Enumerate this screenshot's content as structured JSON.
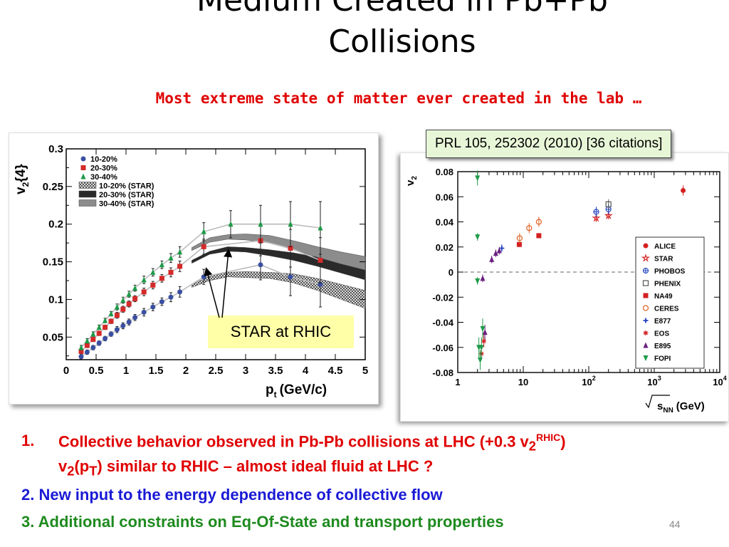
{
  "slide": {
    "title_lines": [
      "Medium Created in Pb+Pb",
      "Collisions"
    ],
    "subtitle": "Most extreme state of matter ever created in the lab …",
    "reference": "PRL 105, 252302 (2010) [36 citations]",
    "callout": "STAR at RHIC",
    "points": {
      "p1_num": "1.",
      "p1_line1": "Collective behavior observed in Pb-Pb collisions at LHC (+0.3 v",
      "p1_sub": "2",
      "p1_sup": "RHIC",
      "p1_close": ")",
      "p1_line2_a": "v",
      "p1_line2_sub1": "2",
      "p1_line2_b": "(p",
      "p1_line2_sub2": "T",
      "p1_line2_c": ") similar to RHIC – almost ideal fluid at LHC ?",
      "p2": "2. New input to the energy dependence of collective flow",
      "p3": "3. Additional constraints on Eq-Of-State and transport properties"
    },
    "page_number": "44",
    "colors": {
      "red": "#e00000",
      "blue": "#1a1ad6",
      "green": "#1e8a1e"
    }
  },
  "chart_data": [
    {
      "type": "scatter",
      "xlabel": "p",
      "xlabel_sub": "t",
      "xlabel_unit": "(GeV/c)",
      "ylabel": "v",
      "ylabel_sub": "2",
      "ylabel_brace": "{4}",
      "xlim": [
        0,
        5
      ],
      "ylim": [
        0.02,
        0.3
      ],
      "xticks": [
        0,
        0.5,
        1,
        1.5,
        2,
        2.5,
        3,
        3.5,
        4,
        4.5,
        5
      ],
      "xtick_labels": [
        "0",
        "0.5",
        "1",
        "1.5",
        "2",
        "2.5",
        "3",
        "3.5",
        "4",
        "4.5",
        "5"
      ],
      "yticks": [
        0.05,
        0.1,
        0.15,
        0.2,
        0.25,
        0.3
      ],
      "ytick_labels": [
        "0.05",
        "0.1",
        "0.15",
        "0.2",
        "0.25",
        "0.3"
      ],
      "legend_position": "top-left",
      "series": [
        {
          "name": "10-20%",
          "marker": "circle",
          "color": "#3a4fa0",
          "x": [
            0.25,
            0.35,
            0.45,
            0.55,
            0.65,
            0.75,
            0.85,
            0.95,
            1.05,
            1.15,
            1.3,
            1.45,
            1.6,
            1.75,
            1.9,
            2.3,
            3.25,
            3.75,
            4.25
          ],
          "y": [
            0.024,
            0.03,
            0.036,
            0.042,
            0.048,
            0.054,
            0.06,
            0.065,
            0.07,
            0.076,
            0.083,
            0.09,
            0.097,
            0.103,
            0.11,
            0.13,
            0.146,
            0.13,
            0.12
          ],
          "err": [
            0.003,
            0.003,
            0.003,
            0.003,
            0.003,
            0.003,
            0.004,
            0.004,
            0.004,
            0.004,
            0.005,
            0.005,
            0.005,
            0.006,
            0.007,
            0.01,
            0.02,
            0.025,
            0.03
          ]
        },
        {
          "name": "20-30%",
          "marker": "square",
          "color": "#d42a2a",
          "x": [
            0.25,
            0.35,
            0.45,
            0.55,
            0.65,
            0.75,
            0.85,
            0.95,
            1.05,
            1.15,
            1.3,
            1.45,
            1.6,
            1.75,
            1.9,
            2.3,
            3.25,
            3.75,
            4.25
          ],
          "y": [
            0.031,
            0.039,
            0.047,
            0.055,
            0.063,
            0.071,
            0.079,
            0.087,
            0.094,
            0.101,
            0.11,
            0.119,
            0.128,
            0.136,
            0.144,
            0.17,
            0.178,
            0.168,
            0.152
          ],
          "err": [
            0.003,
            0.003,
            0.003,
            0.003,
            0.003,
            0.003,
            0.004,
            0.004,
            0.004,
            0.004,
            0.005,
            0.005,
            0.005,
            0.006,
            0.007,
            0.01,
            0.02,
            0.025,
            0.03
          ]
        },
        {
          "name": "30-40%",
          "marker": "triangle",
          "color": "#1e9a48",
          "x": [
            0.25,
            0.35,
            0.45,
            0.55,
            0.65,
            0.75,
            0.85,
            0.95,
            1.05,
            1.15,
            1.3,
            1.45,
            1.6,
            1.75,
            1.9,
            2.3,
            2.75,
            3.25,
            3.75,
            4.25
          ],
          "y": [
            0.036,
            0.045,
            0.054,
            0.063,
            0.072,
            0.081,
            0.09,
            0.099,
            0.107,
            0.115,
            0.126,
            0.136,
            0.146,
            0.155,
            0.163,
            0.19,
            0.2,
            0.2,
            0.2,
            0.195
          ],
          "err": [
            0.003,
            0.003,
            0.003,
            0.003,
            0.003,
            0.003,
            0.004,
            0.004,
            0.004,
            0.004,
            0.005,
            0.005,
            0.005,
            0.006,
            0.007,
            0.012,
            0.018,
            0.025,
            0.03,
            0.035
          ]
        }
      ],
      "bands": [
        {
          "name": "10-20% (STAR)",
          "pattern": "crosshatch",
          "x": [
            2.1,
            2.4,
            2.7,
            3.0,
            3.4,
            3.8,
            4.2,
            4.6,
            5.0
          ],
          "y": [
            0.118,
            0.128,
            0.133,
            0.133,
            0.132,
            0.128,
            0.12,
            0.11,
            0.1
          ],
          "half_width": [
            0.002,
            0.003,
            0.003,
            0.004,
            0.004,
            0.006,
            0.008,
            0.01,
            0.012
          ]
        },
        {
          "name": "20-30% (STAR)",
          "pattern": "dark",
          "x": [
            2.1,
            2.4,
            2.7,
            3.0,
            3.4,
            3.8,
            4.2,
            4.6,
            5.0
          ],
          "y": [
            0.15,
            0.162,
            0.167,
            0.166,
            0.162,
            0.157,
            0.15,
            0.143,
            0.136
          ],
          "half_width": [
            0.002,
            0.002,
            0.003,
            0.003,
            0.004,
            0.005,
            0.006,
            0.008,
            0.01
          ]
        },
        {
          "name": "30-40% (STAR)",
          "pattern": "gray",
          "x": [
            2.1,
            2.4,
            2.7,
            3.0,
            3.4,
            3.8,
            4.2,
            4.6,
            5.0
          ],
          "y": [
            0.167,
            0.179,
            0.183,
            0.183,
            0.18,
            0.172,
            0.163,
            0.155,
            0.148
          ],
          "half_width": [
            0.002,
            0.003,
            0.003,
            0.004,
            0.005,
            0.006,
            0.007,
            0.008,
            0.009
          ]
        }
      ]
    },
    {
      "type": "scatter",
      "xscale": "log",
      "xlabel": "s",
      "xlabel_sub": "NN",
      "xlabel_unit": "(GeV)",
      "ylabel": "v",
      "ylabel_sub": "2",
      "xlim": [
        1,
        10000
      ],
      "ylim": [
        -0.08,
        0.08
      ],
      "xtick_labels": [
        "1",
        "10",
        "10",
        "10",
        "10"
      ],
      "xtick_exponents": [
        "",
        "",
        "2",
        "3",
        "4"
      ],
      "yticks": [
        -0.08,
        -0.06,
        -0.04,
        -0.02,
        0,
        0.02,
        0.04,
        0.06,
        0.08
      ],
      "ytick_labels": [
        "-0.08",
        "-0.06",
        "-0.04",
        "-0.02",
        "0",
        "0.02",
        "0.04",
        "0.06",
        "0.08"
      ],
      "zero_line": true,
      "legend_position": "bottom-right",
      "series": [
        {
          "name": "ALICE",
          "marker": "circle",
          "color": "#d42020",
          "x": [
            2760
          ],
          "y": [
            0.065
          ],
          "err": [
            0.004
          ]
        },
        {
          "name": "STAR",
          "marker": "star-open",
          "color": "#d42020",
          "x": [
            130,
            200
          ],
          "y": [
            0.043,
            0.045
          ],
          "err": [
            0.003,
            0.003
          ]
        },
        {
          "name": "PHOBOS",
          "marker": "cross-circle-open",
          "color": "#2040c0",
          "x": [
            130,
            200
          ],
          "y": [
            0.048,
            0.05
          ],
          "err": [
            0.004,
            0.004
          ]
        },
        {
          "name": "PHENIX",
          "marker": "square-open",
          "color": "#555555",
          "x": [
            200
          ],
          "y": [
            0.054
          ],
          "err": [
            0.004
          ]
        },
        {
          "name": "NA49",
          "marker": "square",
          "color": "#d42020",
          "x": [
            8.7,
            17.3
          ],
          "y": [
            0.022,
            0.029
          ],
          "err": [
            0.002,
            0.002
          ]
        },
        {
          "name": "CERES",
          "marker": "circle-open",
          "color": "#e06020",
          "x": [
            8.8,
            12.3,
            17.3
          ],
          "y": [
            0.027,
            0.035,
            0.04
          ],
          "err": [
            0.004,
            0.004,
            0.004
          ]
        },
        {
          "name": "E877",
          "marker": "plus",
          "color": "#2040c0",
          "x": [
            4.7
          ],
          "y": [
            0.019
          ],
          "err": [
            0.003
          ]
        },
        {
          "name": "EOS",
          "marker": "asterisk",
          "color": "#d42020",
          "x": [
            2.3,
            2.5
          ],
          "y": [
            -0.065,
            -0.055
          ],
          "err": [
            0.005,
            0.005
          ]
        },
        {
          "name": "E895",
          "marker": "triangle",
          "color": "#6a2080",
          "x": [
            2.6,
            3.3,
            3.8,
            4.3,
            2.4
          ],
          "y": [
            -0.048,
            0.01,
            0.015,
            0.017,
            -0.005
          ],
          "err": [
            0.006,
            0.003,
            0.003,
            0.003,
            0.003
          ]
        },
        {
          "name": "FOPI",
          "marker": "triangle-down",
          "color": "#1e9a48",
          "x": [
            2.0,
            2.0,
            2.0,
            2.1,
            2.2,
            2.3,
            2.4
          ],
          "y": [
            0.075,
            0.028,
            -0.007,
            -0.06,
            -0.07,
            -0.06,
            -0.045
          ],
          "err": [
            0.006,
            0.003,
            0.003,
            0.008,
            0.008,
            0.008,
            0.008
          ]
        }
      ]
    }
  ]
}
